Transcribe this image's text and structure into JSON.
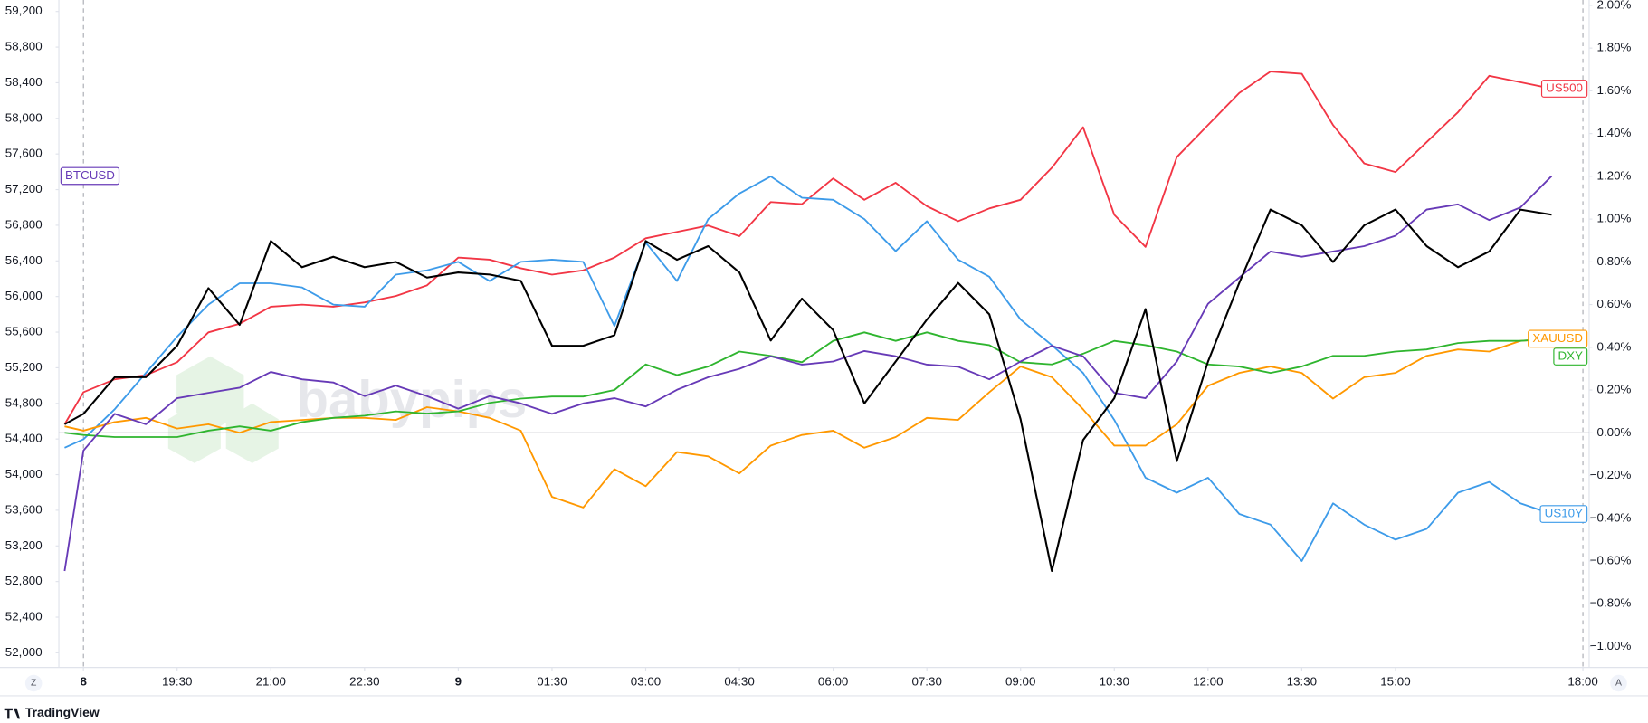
{
  "chart_data": {
    "type": "line",
    "watermark": "babypips",
    "x": [
      17.7,
      18,
      18.5,
      19,
      19.5,
      20,
      20.5,
      21,
      21.5,
      22,
      22.5,
      23,
      23.5,
      24,
      24.5,
      25,
      25.5,
      26,
      26.5,
      27,
      27.5,
      28,
      28.5,
      29,
      29.5,
      30,
      30.5,
      31,
      31.5,
      32,
      32.5,
      33,
      33.5,
      34,
      34.5,
      35,
      35.5,
      36,
      36.5,
      37,
      37.5,
      38,
      38.5,
      39,
      39.5,
      40,
      40.5,
      41,
      41.5
    ],
    "xlim": [
      17.607,
      42.1
    ],
    "xticks": [
      {
        "value": 18,
        "label": "8"
      },
      {
        "value": 19.5,
        "label": "19:30"
      },
      {
        "value": 21,
        "label": "21:00"
      },
      {
        "value": 22.5,
        "label": "22:30"
      },
      {
        "value": 24,
        "label": "9"
      },
      {
        "value": 25.5,
        "label": "01:30"
      },
      {
        "value": 27,
        "label": "03:00"
      },
      {
        "value": 28.5,
        "label": "04:30"
      },
      {
        "value": 30,
        "label": "06:00"
      },
      {
        "value": 31.5,
        "label": "07:30"
      },
      {
        "value": 33,
        "label": "09:00"
      },
      {
        "value": 34.5,
        "label": "10:30"
      },
      {
        "value": 36,
        "label": "12:00"
      },
      {
        "value": 37.5,
        "label": "13:30"
      },
      {
        "value": 39,
        "label": "15:00"
      },
      {
        "value": 42,
        "label": "18:00"
      }
    ],
    "ylim": [
      51835,
      59329
    ],
    "yticks": [
      {
        "value": 52000,
        "label": "52,000"
      },
      {
        "value": 52400,
        "label": "52,400"
      },
      {
        "value": 52800,
        "label": "52,800"
      },
      {
        "value": 53200,
        "label": "53,200"
      },
      {
        "value": 53600,
        "label": "53,600"
      },
      {
        "value": 54000,
        "label": "54,000"
      },
      {
        "value": 54400,
        "label": "54,400"
      },
      {
        "value": 54800,
        "label": "54,800"
      },
      {
        "value": 55200,
        "label": "55,200"
      },
      {
        "value": 55600,
        "label": "55,600"
      },
      {
        "value": 56000,
        "label": "56,000"
      },
      {
        "value": 56400,
        "label": "56,400"
      },
      {
        "value": 56800,
        "label": "56,800"
      },
      {
        "value": 57200,
        "label": "57,200"
      },
      {
        "value": 57600,
        "label": "57,600"
      },
      {
        "value": 58000,
        "label": "58,000"
      },
      {
        "value": 58400,
        "label": "58,400"
      },
      {
        "value": 58800,
        "label": "58,800"
      },
      {
        "value": 59200,
        "label": "59,200"
      }
    ],
    "y2lim": [
      -1.098,
      2.025
    ],
    "y2ticks": [
      {
        "value": -1,
        "label": "−1.00%"
      },
      {
        "value": -0.8,
        "label": "−0.80%"
      },
      {
        "value": -0.6,
        "label": "−0.60%"
      },
      {
        "value": -0.4,
        "label": "−0.40%"
      },
      {
        "value": -0.2,
        "label": "−0.20%"
      },
      {
        "value": 0,
        "label": "0.00%"
      },
      {
        "value": 0.2,
        "label": "0.20%"
      },
      {
        "value": 0.4,
        "label": "0.40%"
      },
      {
        "value": 0.6,
        "label": "0.60%"
      },
      {
        "value": 0.8,
        "label": "0.80%"
      },
      {
        "value": 1,
        "label": "1.00%"
      },
      {
        "value": 1.2,
        "label": "1.20%"
      },
      {
        "value": 1.4,
        "label": "1.40%"
      },
      {
        "value": 1.6,
        "label": "1.60%"
      },
      {
        "value": 1.8,
        "label": "1.80%"
      },
      {
        "value": 2,
        "label": "2.00%"
      }
    ],
    "grid": false,
    "zero_line": true,
    "series": [
      {
        "name": "US500",
        "color": "#f23645",
        "axis": "y2",
        "values": [
          0.04,
          0.19,
          0.25,
          0.27,
          0.33,
          0.47,
          0.51,
          0.59,
          0.6,
          0.59,
          0.61,
          0.64,
          0.69,
          0.82,
          0.81,
          0.77,
          0.74,
          0.76,
          0.82,
          0.91,
          0.94,
          0.97,
          0.92,
          1.08,
          1.07,
          1.19,
          1.09,
          1.17,
          1.06,
          0.99,
          1.05,
          1.09,
          1.24,
          1.43,
          1.02,
          0.87,
          1.29,
          1.44,
          1.59,
          1.69,
          1.68,
          1.44,
          1.26,
          1.22,
          1.36,
          1.5,
          1.67,
          1.64,
          1.61
        ]
      },
      {
        "name": "US10Y",
        "color": "#3d9be9",
        "axis": "y2",
        "values": [
          -0.07,
          -0.03,
          0.11,
          0.28,
          0.45,
          0.6,
          0.7,
          0.7,
          0.68,
          0.6,
          0.59,
          0.74,
          0.76,
          0.8,
          0.71,
          0.8,
          0.81,
          0.8,
          0.5,
          0.89,
          0.71,
          1.0,
          1.12,
          1.2,
          1.1,
          1.09,
          1.0,
          0.85,
          0.99,
          0.81,
          0.73,
          0.53,
          0.41,
          0.28,
          0.06,
          -0.21,
          -0.28,
          -0.21,
          -0.38,
          -0.43,
          -0.6,
          -0.33,
          -0.43,
          -0.5,
          -0.45,
          -0.28,
          -0.23,
          -0.33,
          -0.38
        ]
      },
      {
        "name": "XAUUSD",
        "color": "#ff9800",
        "axis": "y2",
        "values": [
          0.03,
          0.01,
          0.05,
          0.07,
          0.02,
          0.04,
          0.0,
          0.05,
          0.06,
          0.07,
          0.07,
          0.06,
          0.12,
          0.1,
          0.07,
          0.01,
          -0.3,
          -0.35,
          -0.17,
          -0.25,
          -0.09,
          -0.11,
          -0.19,
          -0.06,
          -0.01,
          0.01,
          -0.07,
          -0.02,
          0.07,
          0.06,
          0.19,
          0.31,
          0.26,
          0.11,
          -0.06,
          -0.06,
          0.04,
          0.22,
          0.28,
          0.31,
          0.28,
          0.16,
          0.26,
          0.28,
          0.36,
          0.39,
          0.38,
          0.43,
          0.44
        ]
      },
      {
        "name": "DXY",
        "color": "#2fb52f",
        "axis": "y2",
        "values": [
          0.0,
          -0.01,
          -0.02,
          -0.02,
          -0.02,
          0.01,
          0.03,
          0.01,
          0.05,
          0.07,
          0.08,
          0.1,
          0.09,
          0.1,
          0.14,
          0.16,
          0.17,
          0.17,
          0.2,
          0.32,
          0.27,
          0.31,
          0.38,
          0.36,
          0.33,
          0.43,
          0.47,
          0.43,
          0.47,
          0.43,
          0.41,
          0.33,
          0.32,
          0.37,
          0.43,
          0.41,
          0.38,
          0.32,
          0.31,
          0.28,
          0.31,
          0.36,
          0.36,
          0.38,
          0.39,
          0.42,
          0.43,
          0.43,
          0.44
        ]
      },
      {
        "name": "BTCUSD",
        "color": "#673ab7",
        "values": [
          52918,
          54270,
          54682,
          54565,
          54859,
          54918,
          54976,
          55153,
          55070,
          55035,
          54882,
          55000,
          54882,
          54741,
          54882,
          54800,
          54682,
          54800,
          54859,
          54765,
          54953,
          55094,
          55188,
          55329,
          55235,
          55270,
          55388,
          55329,
          55235,
          55212,
          55070,
          55270,
          55447,
          55329,
          54918,
          54859,
          55270,
          55918,
          56212,
          56506,
          56447,
          56506,
          56565,
          56682,
          56976,
          57035,
          56859,
          57000,
          57353
        ]
      },
      {
        "color": "#000000",
        "values": [
          54565,
          54682,
          55094,
          55094,
          55447,
          56094,
          55682,
          56623,
          56329,
          56447,
          56329,
          56388,
          56212,
          56270,
          56247,
          56176,
          55447,
          55447,
          55565,
          56623,
          56412,
          56565,
          56270,
          55506,
          55976,
          55623,
          54800,
          55270,
          55741,
          56153,
          55800,
          54623,
          52918,
          54388,
          54859,
          55859,
          54153,
          55270,
          56153,
          56976,
          56800,
          56388,
          56800,
          56976,
          56565,
          56329,
          56506,
          56976,
          56918
        ]
      }
    ]
  },
  "ui": {
    "left_button": "Z",
    "right_button": "A",
    "brand": "TradingView"
  }
}
